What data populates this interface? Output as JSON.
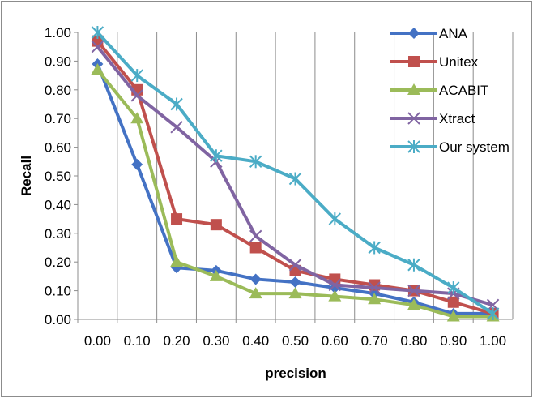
{
  "chart_data": {
    "type": "line",
    "xlabel": "precision",
    "ylabel": "Recall",
    "categories": [
      "0.00",
      "0.10",
      "0.20",
      "0.30",
      "0.40",
      "0.50",
      "0.60",
      "0.70",
      "0.80",
      "0.90",
      "1.00"
    ],
    "y_ticks": [
      "0.00",
      "0.10",
      "0.20",
      "0.30",
      "0.40",
      "0.50",
      "0.60",
      "0.70",
      "0.80",
      "0.90",
      "1.00"
    ],
    "ylim": [
      0,
      1.0
    ],
    "grid": "vertical",
    "legend_position": "top-right",
    "series": [
      {
        "name": "ANA",
        "color": "#4472C4",
        "marker": "diamond",
        "values": [
          0.89,
          0.54,
          0.18,
          0.17,
          0.14,
          0.13,
          0.11,
          0.09,
          0.06,
          0.02,
          0.02
        ]
      },
      {
        "name": "Unitex",
        "color": "#C0504D",
        "marker": "square",
        "values": [
          0.97,
          0.8,
          0.35,
          0.33,
          0.25,
          0.17,
          0.14,
          0.12,
          0.1,
          0.06,
          0.02
        ]
      },
      {
        "name": "ACABIT",
        "color": "#9BBB59",
        "marker": "triangle",
        "values": [
          0.87,
          0.7,
          0.2,
          0.15,
          0.09,
          0.09,
          0.08,
          0.07,
          0.05,
          0.01,
          0.01
        ]
      },
      {
        "name": "Xtract",
        "color": "#8064A2",
        "marker": "x",
        "values": [
          0.95,
          0.78,
          0.67,
          0.55,
          0.29,
          0.19,
          0.12,
          0.11,
          0.1,
          0.09,
          0.05
        ]
      },
      {
        "name": "Our system",
        "color": "#4BACC6",
        "marker": "star",
        "values": [
          1.0,
          0.85,
          0.75,
          0.57,
          0.55,
          0.49,
          0.35,
          0.25,
          0.19,
          0.11,
          0.02
        ]
      }
    ]
  }
}
